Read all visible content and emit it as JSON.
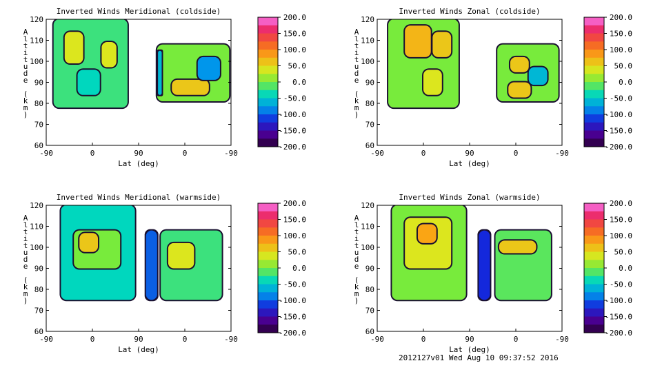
{
  "footer": "2012127v01 Wed Aug 10 09:37:52 2016",
  "chart_data": [
    {
      "type": "heatmap",
      "title": "Inverted Winds Meridional (coldside)",
      "xlabel": "Lat (deg)",
      "ylabel": "Altitude (km)",
      "x_ticks": [
        "-90",
        "0",
        "90",
        "0",
        "-90"
      ],
      "y_ticks": [
        60,
        70,
        80,
        90,
        100,
        110,
        120
      ],
      "ylim": [
        60,
        120
      ],
      "colorbar_ticks": [
        "200.0",
        "150.0",
        "100.0",
        "50.0",
        "0.0",
        "-50.0",
        "-100.0",
        "-150.0",
        "-200.0"
      ],
      "clim": [
        -200,
        200
      ]
    },
    {
      "type": "heatmap",
      "title": "Inverted Winds Zonal (coldside)",
      "xlabel": "Lat (deg)",
      "ylabel": "Altitude (km)",
      "x_ticks": [
        "-90",
        "0",
        "90",
        "0",
        "-90"
      ],
      "y_ticks": [
        60,
        70,
        80,
        90,
        100,
        110,
        120
      ],
      "ylim": [
        60,
        120
      ],
      "colorbar_ticks": [
        "200.0",
        "150.0",
        "100.0",
        "50.0",
        "0.0",
        "-50.0",
        "-100.0",
        "-150.0",
        "-200.0"
      ],
      "clim": [
        -200,
        200
      ]
    },
    {
      "type": "heatmap",
      "title": "Inverted Winds Meridional (warmside)",
      "xlabel": "Lat (deg)",
      "ylabel": "Altitude (km)",
      "x_ticks": [
        "-90",
        "0",
        "90",
        "0",
        "-90"
      ],
      "y_ticks": [
        60,
        70,
        80,
        90,
        100,
        110,
        120
      ],
      "ylim": [
        60,
        120
      ],
      "colorbar_ticks": [
        "200.0",
        "150.0",
        "100.0",
        "50.0",
        "0.0",
        "-50.0",
        "-100.0",
        "-150.0",
        "-200.0"
      ],
      "clim": [
        -200,
        200
      ]
    },
    {
      "type": "heatmap",
      "title": "Inverted Winds Zonal (warmside)",
      "xlabel": "Lat (deg)",
      "ylabel": "Altitude (km)",
      "x_ticks": [
        "-90",
        "0",
        "90",
        "0",
        "-90"
      ],
      "y_ticks": [
        60,
        70,
        80,
        90,
        100,
        110,
        120
      ],
      "ylim": [
        60,
        120
      ],
      "colorbar_ticks": [
        "200.0",
        "150.0",
        "100.0",
        "50.0",
        "0.0",
        "-50.0",
        "-100.0",
        "-150.0",
        "-200.0"
      ],
      "clim": [
        -200,
        200
      ]
    }
  ]
}
